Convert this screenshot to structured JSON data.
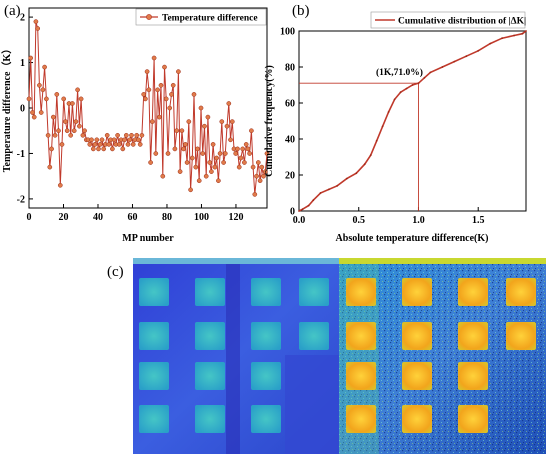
{
  "panel_labels": {
    "a": "(a)",
    "b": "(b)",
    "c": "(c)"
  },
  "colors": {
    "series": "#c0392b",
    "marker_fill": "#e07b4a",
    "cool_bg": "#3a4fd8",
    "cool_cell": "#3ab3c8",
    "hot_bg": "#2b6fd0",
    "hot_cell": "#f0a020"
  },
  "chart_data": [
    {
      "type": "line",
      "xlabel": "MP number",
      "ylabel": "Temperature difference（K）",
      "legend": "Temperature difference",
      "legend_position": "top-right",
      "xlim": [
        0,
        138
      ],
      "ylim": [
        -2.2,
        2.2
      ],
      "xticks": [
        "0",
        "20",
        "40",
        "60",
        "80",
        "100",
        "120"
      ],
      "yticks": [
        "2",
        "1",
        "0",
        "-1",
        "-2"
      ],
      "series": [
        {
          "name": "Temperature difference",
          "values": [
            0.2,
            1.1,
            -0.1,
            -0.2,
            1.9,
            1.75,
            0.5,
            -0.1,
            0.4,
            0.9,
            0.2,
            -0.6,
            -1.3,
            -0.9,
            -0.2,
            -0.6,
            0.3,
            -0.5,
            -1.7,
            -0.8,
            0.2,
            -0.3,
            -0.5,
            0.1,
            -0.6,
            0.1,
            -0.5,
            -0.3,
            0.4,
            -0.4,
            0.2,
            -0.6,
            -0.5,
            -0.7,
            -0.7,
            -0.8,
            -0.7,
            -0.9,
            -0.8,
            -0.7,
            -0.9,
            -0.8,
            -0.7,
            -0.9,
            -0.8,
            -0.6,
            -0.8,
            -0.7,
            -0.9,
            -0.7,
            -0.8,
            -0.6,
            -0.8,
            -0.7,
            -0.9,
            -0.7,
            -0.6,
            -0.8,
            -0.7,
            -0.6,
            -0.8,
            -0.7,
            -0.6,
            -0.7,
            -0.8,
            -0.6,
            0.3,
            0.2,
            0.8,
            0.4,
            -1.2,
            -0.3,
            1.1,
            -1.0,
            0.4,
            -0.2,
            0.5,
            -1.5,
            0.9,
            0.2,
            -1.0,
            0.0,
            0.3,
            0.5,
            -0.9,
            -0.5,
            0.8,
            -1.4,
            -0.5,
            -0.9,
            -0.8,
            -1.2,
            -0.3,
            -1.8,
            -1.1,
            0.3,
            -1.3,
            -0.9,
            -1.6,
            0.0,
            -1.0,
            -0.4,
            -1.5,
            -0.2,
            -1.2,
            -1.4,
            -0.8,
            -1.3,
            -1.1,
            -1.6,
            -1.0,
            -0.3,
            -1.2,
            -1.0,
            -0.4,
            0.1,
            -0.7,
            -0.3,
            -0.9,
            -1.0,
            -0.9,
            -1.3,
            -1.1,
            -0.9,
            -1.2,
            -0.8,
            -0.9,
            -1.0,
            -0.5,
            -1.3,
            -1.9,
            -1.5,
            -1.2,
            -1.6,
            -1.3,
            -1.5,
            -1.4,
            -1.0
          ]
        }
      ]
    },
    {
      "type": "line",
      "xlabel": "Absolute temperature difference(K)",
      "ylabel": "Cumulative frequency(%)",
      "legend": "Cumulative distribution of |ΔK|",
      "legend_position": "top-right",
      "xlim": [
        0,
        1.9
      ],
      "ylim": [
        0,
        100
      ],
      "xticks": [
        "0.0",
        "0.5",
        "1.0",
        "1.5"
      ],
      "yticks": [
        "0",
        "20",
        "40",
        "60",
        "80",
        "100"
      ],
      "annotation": "(1K,71.0%)",
      "annotation_point": [
        1.0,
        71.0
      ],
      "series": [
        {
          "name": "Cumulative distribution of |ΔK|",
          "points": [
            [
              0.0,
              0
            ],
            [
              0.03,
              1
            ],
            [
              0.08,
              3
            ],
            [
              0.12,
              6
            ],
            [
              0.18,
              10
            ],
            [
              0.25,
              12
            ],
            [
              0.32,
              14
            ],
            [
              0.4,
              18
            ],
            [
              0.48,
              21
            ],
            [
              0.55,
              26
            ],
            [
              0.6,
              31
            ],
            [
              0.65,
              39
            ],
            [
              0.7,
              47
            ],
            [
              0.75,
              55
            ],
            [
              0.8,
              62
            ],
            [
              0.85,
              66
            ],
            [
              0.9,
              68
            ],
            [
              0.95,
              70
            ],
            [
              1.0,
              71
            ],
            [
              1.05,
              74
            ],
            [
              1.1,
              77
            ],
            [
              1.2,
              80
            ],
            [
              1.3,
              83
            ],
            [
              1.4,
              86
            ],
            [
              1.5,
              89
            ],
            [
              1.6,
              93
            ],
            [
              1.7,
              96
            ],
            [
              1.8,
              97.5
            ],
            [
              1.87,
              98.5
            ],
            [
              1.9,
              100
            ]
          ]
        }
      ]
    }
  ],
  "thermal": {
    "left_grid": [
      [
        1,
        1,
        1,
        1
      ],
      [
        1,
        1,
        1,
        1
      ],
      [
        1,
        1,
        1,
        0
      ],
      [
        1,
        1,
        1,
        0
      ]
    ],
    "right_grid": [
      [
        1,
        1,
        1,
        1
      ],
      [
        1,
        1,
        1,
        1
      ],
      [
        1,
        1,
        1,
        0
      ],
      [
        1,
        1,
        1,
        0
      ]
    ]
  }
}
